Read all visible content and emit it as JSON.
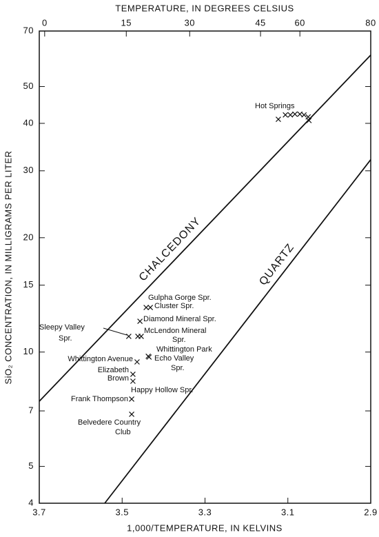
{
  "chart_data": {
    "type": "scatter",
    "x_title": "1,000/TEMPERATURE, IN KELVINS",
    "x2_title": "TEMPERATURE, IN DEGREES CELSIUS",
    "y_title": "SiO₂ CONCENTRATION, IN MILLIGRAMS PER LITER",
    "xlim": [
      3.7,
      2.9
    ],
    "ylim": [
      4,
      70
    ],
    "log_y": true,
    "xticks": [
      3.7,
      3.5,
      3.3,
      3.1,
      2.9
    ],
    "yticks": [
      4,
      5,
      7,
      10,
      15,
      20,
      30,
      40,
      50,
      70
    ],
    "x2ticks": [
      {
        "value": 3.687,
        "label": "0"
      },
      {
        "value": 3.49,
        "label": "15"
      },
      {
        "value": 3.337,
        "label": "30"
      },
      {
        "value": 3.166,
        "label": "45"
      },
      {
        "value": 3.071,
        "label": "60"
      },
      {
        "value": 2.9,
        "label": "80"
      }
    ],
    "color": "#111111",
    "x": [
      3.123,
      3.106,
      3.094,
      3.083,
      3.071,
      3.061,
      3.051,
      3.049,
      3.442,
      3.432,
      3.457,
      3.484,
      3.462,
      3.454,
      3.437,
      3.435,
      3.464,
      3.474,
      3.474,
      3.477,
      3.477
    ],
    "values": [
      41.0,
      42.1,
      42.1,
      42.3,
      42.3,
      42.1,
      41.6,
      40.7,
      13.1,
      13.1,
      12.05,
      11.0,
      11.0,
      11.0,
      9.75,
      9.7,
      9.42,
      8.74,
      8.38,
      7.52,
      6.86
    ],
    "labels": [
      [
        "Hot Springs"
      ],
      null,
      null,
      null,
      null,
      null,
      null,
      null,
      [
        "Gulpha Gorge Spr."
      ],
      [
        "Cluster Spr."
      ],
      [
        "Diamond Mineral Spr."
      ],
      [
        "Sleepy Valley",
        "Spr."
      ],
      [
        "McLendon Mineral",
        "Spr."
      ],
      null,
      [
        "Whittington Park"
      ],
      [
        "Echo Valley",
        "Spr."
      ],
      [
        "Whittington Avenue"
      ],
      [
        "Elizabeth",
        "Brown"
      ],
      [
        "Happy Hollow Spr."
      ],
      [
        "Frank Thompson"
      ],
      [
        "Belvedere Country",
        "Club"
      ]
    ],
    "lines": [
      {
        "name": "CHALCEDONY",
        "x": [
          3.7,
          2.9
        ],
        "values": [
          7.42,
          60.5
        ]
      },
      {
        "name": "QUARTZ",
        "x": [
          3.542,
          2.9
        ],
        "values": [
          4,
          32.1
        ]
      }
    ]
  }
}
